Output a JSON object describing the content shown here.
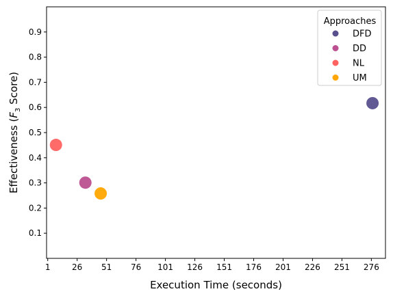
{
  "chart_data": {
    "type": "scatter",
    "xlabel": "Execution Time (seconds)",
    "ylabel": {
      "prefix": "Effectiveness (",
      "var": "F",
      "sub": "3",
      "suffix": " Score)"
    },
    "xlim": [
      0,
      288
    ],
    "ylim": [
      0.0,
      1.0
    ],
    "xticks": [
      1,
      26,
      51,
      76,
      101,
      126,
      151,
      176,
      201,
      226,
      251,
      276
    ],
    "yticks": [
      0.1,
      0.2,
      0.3,
      0.4,
      0.5,
      0.6,
      0.7,
      0.8,
      0.9
    ],
    "grid": false,
    "legend": {
      "title": "Approaches",
      "position": "top-right"
    },
    "series": [
      {
        "name": "DFD",
        "color": "#58508d",
        "points": [
          {
            "x": 277,
            "y": 0.617
          }
        ]
      },
      {
        "name": "DD",
        "color": "#bc5090",
        "points": [
          {
            "x": 33,
            "y": 0.301
          }
        ]
      },
      {
        "name": "NL",
        "color": "#ff6361",
        "points": [
          {
            "x": 8,
            "y": 0.451
          }
        ]
      },
      {
        "name": "UM",
        "color": "#ffa600",
        "points": [
          {
            "x": 46,
            "y": 0.258
          }
        ]
      }
    ]
  }
}
